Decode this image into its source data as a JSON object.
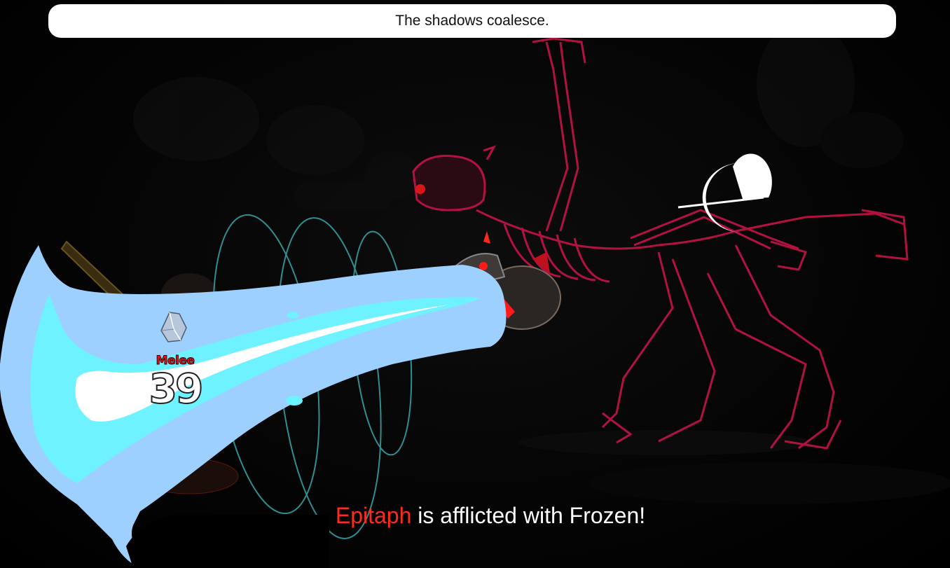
{
  "message_bar": {
    "text": "The shadows coalesce."
  },
  "combat": {
    "attack_type": "Melee",
    "damage": "39",
    "damage_label_color": "#e8131b"
  },
  "status": {
    "target": "Epitaph",
    "message": " is afflicted with Frozen!",
    "target_color": "#ff2a1e"
  },
  "icons": {
    "ice_crystal": "ice-crystal-icon",
    "moon_rune": "crescent-moon-rune-icon"
  },
  "colors": {
    "ice_outer": "#9ed0ff",
    "ice_mid": "#6ff2ff",
    "skeleton": "#d0144a"
  }
}
